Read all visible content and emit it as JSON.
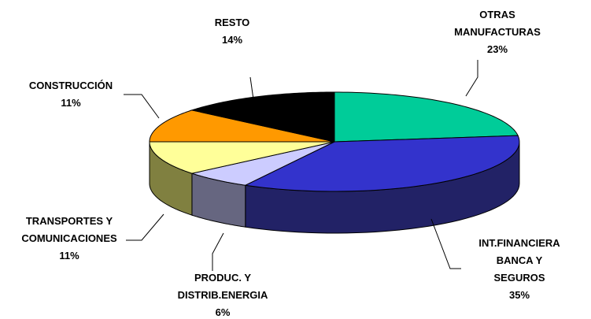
{
  "chart_data": {
    "type": "pie",
    "categories": [
      "OTRAS\nMANUFACTURAS",
      "INT.FINANCIERA\nBANCA Y SEGUROS",
      "PRODUC. Y\nDISTRIB.ENERGIA",
      "TRANSPORTES Y\nCOMUNICACIONES",
      "CONSTRUCCIÓN",
      "RESTO"
    ],
    "values": [
      23,
      35,
      6,
      11,
      11,
      14
    ],
    "value_labels": [
      "23%",
      "35%",
      "6%",
      "11%",
      "11%",
      "14%"
    ],
    "colors": [
      "#00cc99",
      "#3333cc",
      "#ccccff",
      "#ffff99",
      "#ff9900",
      "#000000"
    ],
    "side_colors": [
      "#00806a",
      "#222266",
      "#666680",
      "#808040",
      "#995c00",
      "#000000"
    ]
  }
}
